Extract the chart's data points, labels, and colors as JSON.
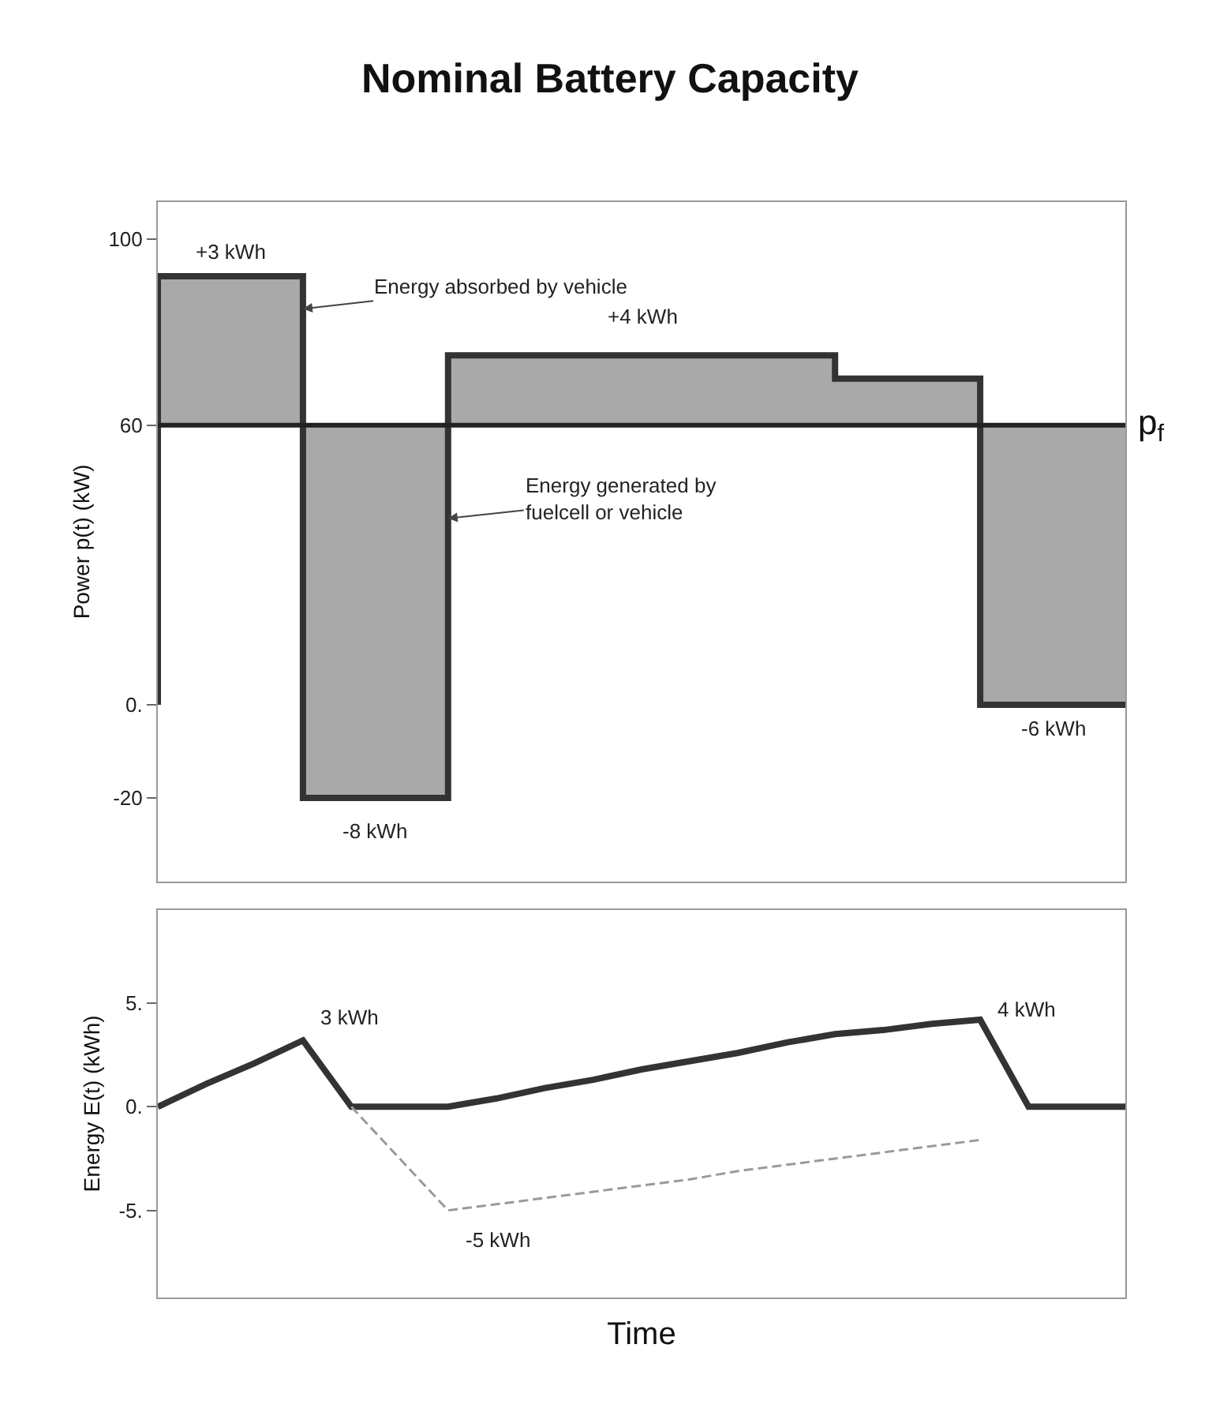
{
  "chart_data": [
    {
      "type": "step",
      "title": "Nominal Battery Capacity",
      "ylabel": "Power p(t) (kW)",
      "categories": [
        null,
        null,
        null,
        null,
        null,
        null,
        null,
        null,
        null,
        null,
        null,
        null,
        null,
        null,
        null,
        null,
        null,
        null,
        null,
        null,
        null
      ],
      "series": [
        {
          "color": "#333333",
          "values": [
            0,
            92,
            92,
            92,
            -20,
            -20,
            -20,
            75,
            75,
            75,
            75,
            75,
            75,
            75,
            75,
            70,
            70,
            70,
            0,
            0,
            0
          ]
        }
      ],
      "ylim": [
        -38,
        108
      ],
      "yticks": [
        {
          "value": -20,
          "label": "-20"
        },
        {
          "value": 0,
          "label": "0."
        },
        {
          "value": 60,
          "label": "60"
        },
        {
          "value": 100,
          "label": "100"
        }
      ],
      "ref_lines": [
        {
          "axis": "y",
          "value": 60,
          "label": "p$_{f}$",
          "color": "#222222"
        }
      ],
      "annotations": [
        "+3 kWh",
        "Energy absorbed by vehicle",
        "+4 kWh",
        "Energy generated by fuelcell or vehicle",
        "-8 kWh",
        "-6 kWh"
      ],
      "tick_labels": "y"
    },
    {
      "type": "line",
      "xlabel": "Time",
      "ylabel": "Energy E(t) (kWh)",
      "categories": [
        null,
        null,
        null,
        null,
        null,
        null,
        null,
        null,
        null,
        null,
        null,
        null,
        null,
        null,
        null,
        null,
        null,
        null,
        null,
        null,
        null
      ],
      "series": [
        {
          "values": [
            0,
            1.1,
            2.1,
            3.2,
            0,
            0,
            0,
            0.4,
            0.9,
            1.3,
            1.8,
            2.2,
            2.6,
            3.1,
            3.5,
            3.7,
            4.0,
            4.2,
            0,
            0,
            0
          ],
          "color": "#333333",
          "line_style": "solid"
        },
        {
          "values": [
            null,
            null,
            null,
            null,
            0,
            -2.5,
            -5,
            -4.7,
            -4.4,
            -4.1,
            -3.8,
            -3.5,
            -3.1,
            -2.8,
            -2.5,
            -2.2,
            -1.9,
            -1.6,
            null,
            null,
            null
          ],
          "color": "#9a9a9a",
          "line_style": "dashed"
        }
      ],
      "ylim": [
        -9.2,
        9.5
      ],
      "yticks": [
        {
          "value": -5,
          "label": "-5."
        },
        {
          "value": 0,
          "label": "0."
        },
        {
          "value": 5,
          "label": "5."
        }
      ],
      "annotations": [
        "3 kWh",
        "-5 kWh",
        "4 kWh"
      ],
      "tick_labels": "y"
    }
  ]
}
